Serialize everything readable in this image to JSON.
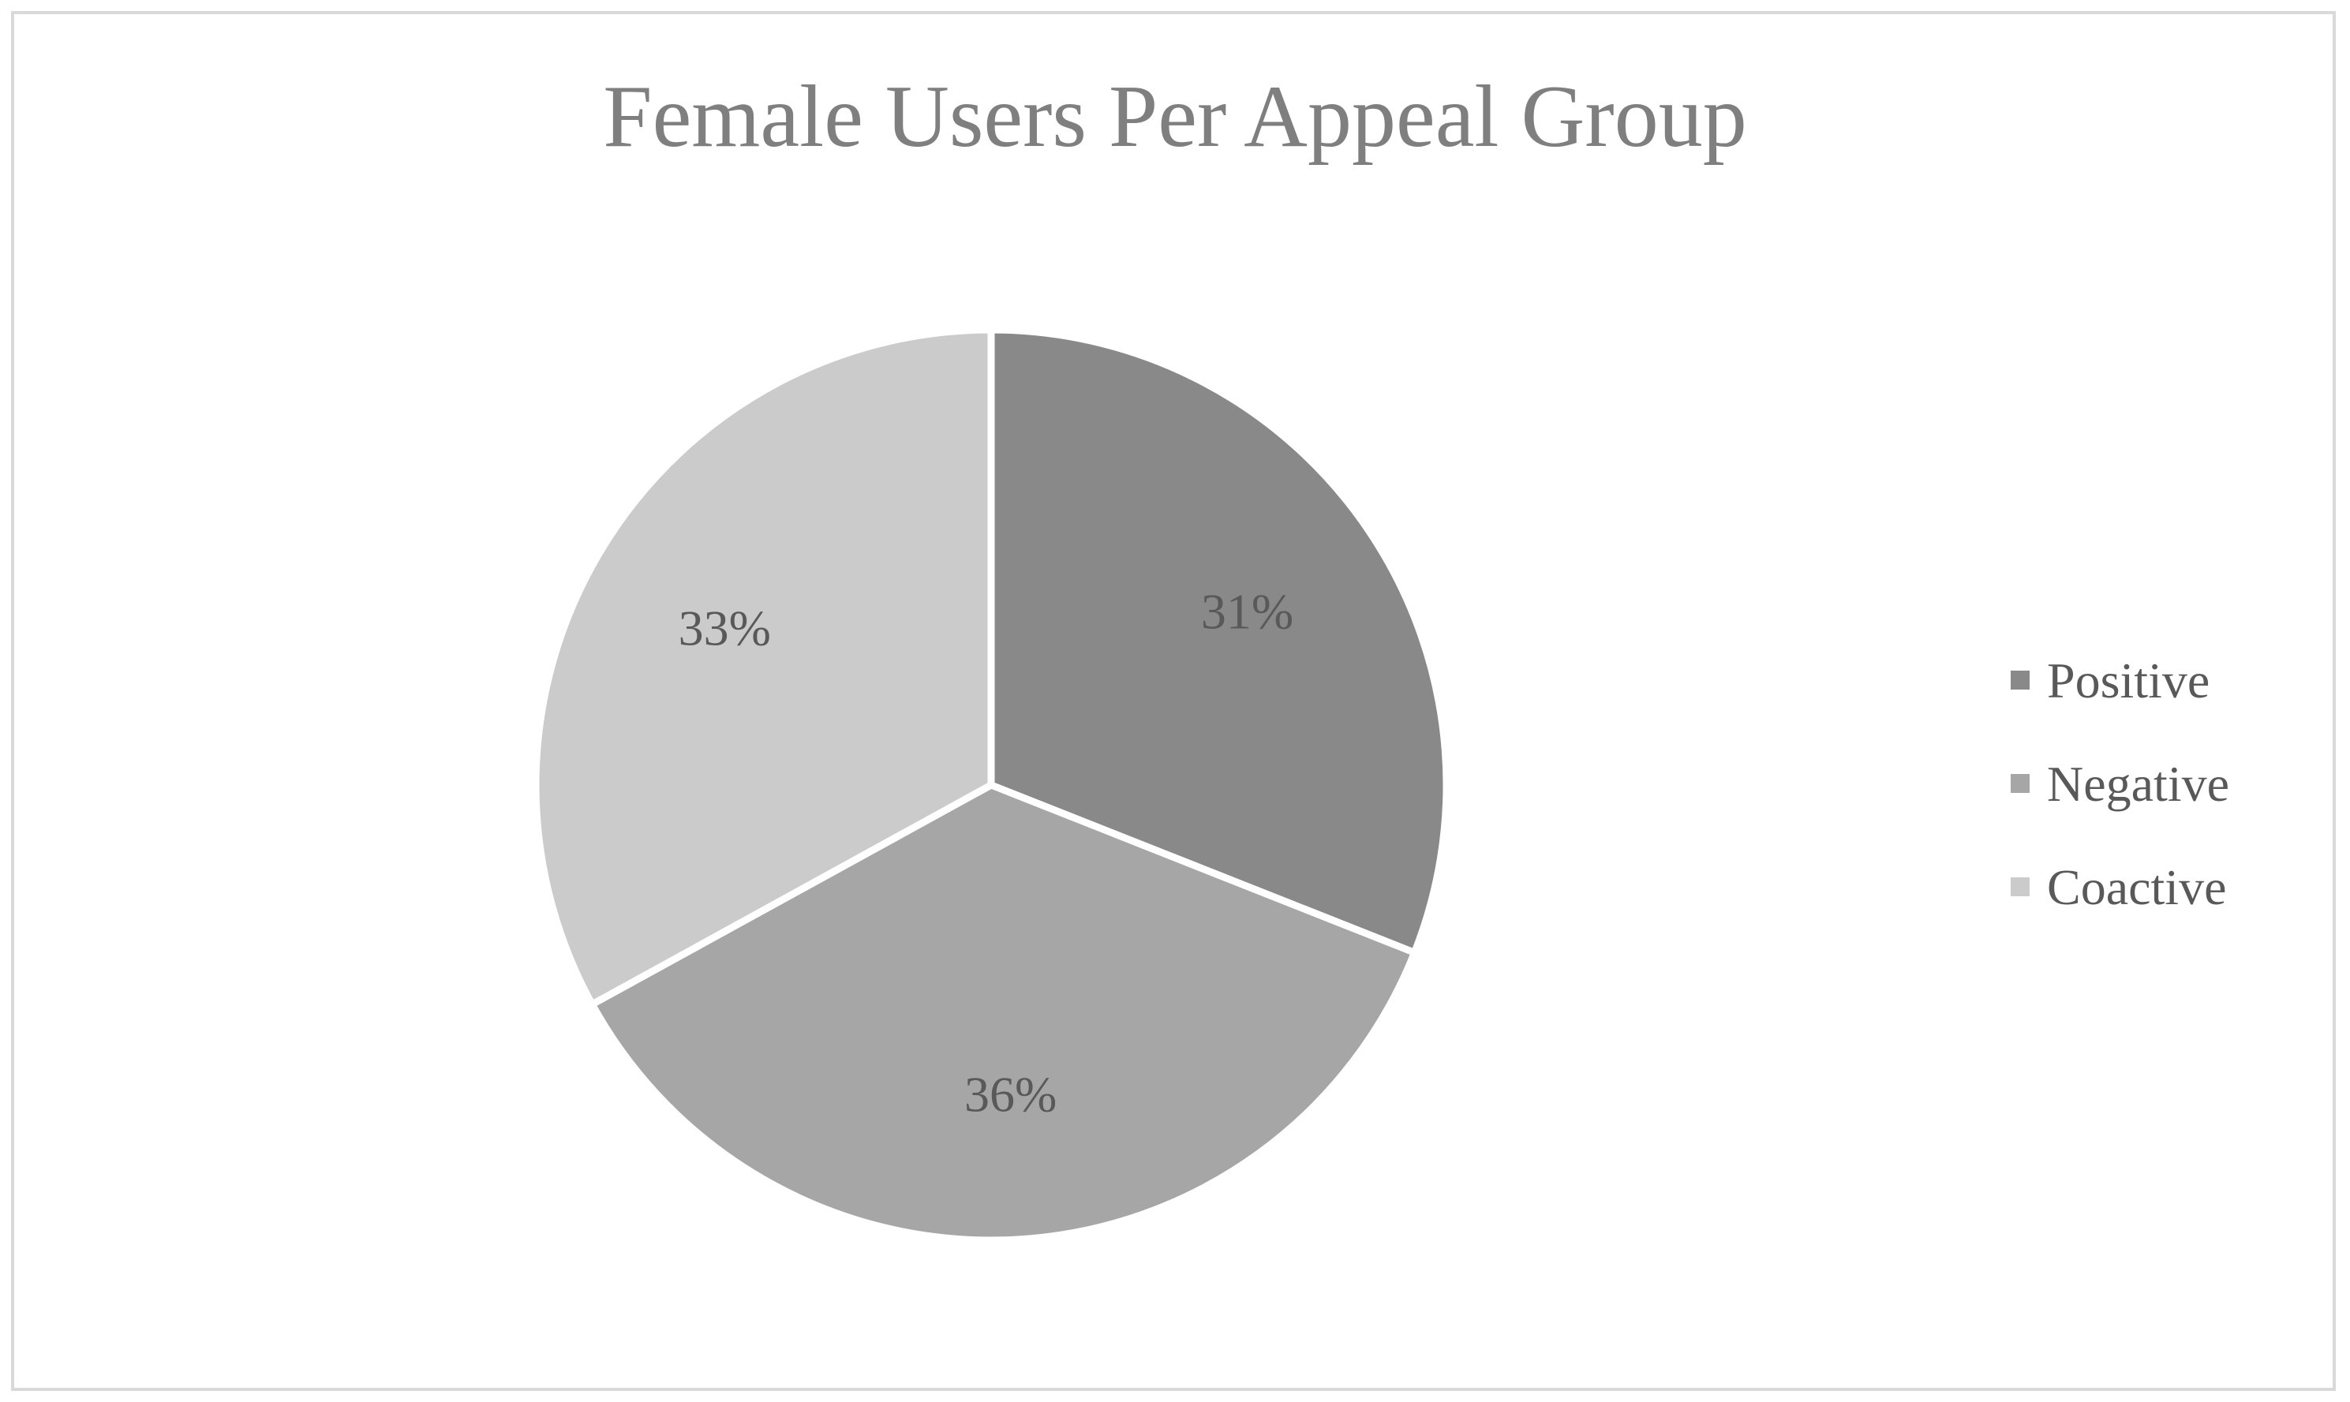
{
  "chart_data": {
    "type": "pie",
    "title": "Female Users Per Appeal Group",
    "categories": [
      "Positive",
      "Negative",
      "Coactive"
    ],
    "values": [
      31,
      36,
      33
    ],
    "labels": [
      "31%",
      "36%",
      "33%"
    ],
    "colors": [
      "#898989",
      "#a6a6a6",
      "#cbcbcb"
    ],
    "legend_position": "right",
    "start_angle_deg": 0,
    "direction": "clockwise"
  }
}
